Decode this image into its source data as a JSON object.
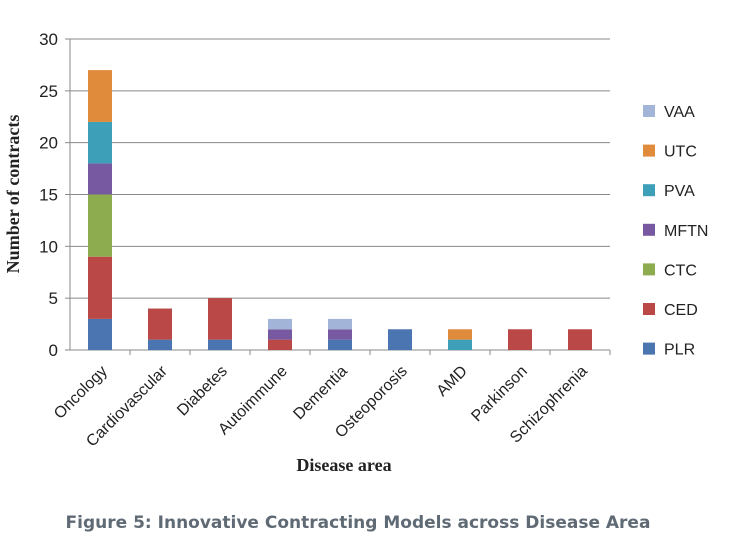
{
  "chart_data": {
    "type": "bar",
    "stacked": true,
    "caption": "Figure 5: Innovative Contracting Models across Disease Area",
    "xlabel": "Disease area",
    "ylabel": "Number of contracts",
    "ylim": [
      0,
      30
    ],
    "yticks": [
      0,
      5,
      10,
      15,
      20,
      25,
      30
    ],
    "grid": true,
    "legend_position": "right",
    "categories": [
      "Oncology",
      "Cardiovascular",
      "Diabetes",
      "Autoimmune",
      "Dementia",
      "Osteoporosis",
      "AMD",
      "Parkinson",
      "Schizophrenia"
    ],
    "series": [
      {
        "name": "PLR",
        "color": "#4a75b0",
        "values": [
          3,
          1,
          1,
          0,
          1,
          2,
          0,
          0,
          0
        ]
      },
      {
        "name": "CED",
        "color": "#b94846",
        "values": [
          6,
          3,
          4,
          1,
          0,
          0,
          0,
          2,
          2
        ]
      },
      {
        "name": "CTC",
        "color": "#8dab4f",
        "values": [
          6,
          0,
          0,
          0,
          0,
          0,
          0,
          0,
          0
        ]
      },
      {
        "name": "MFTN",
        "color": "#7659a0",
        "values": [
          3,
          0,
          0,
          1,
          1,
          0,
          0,
          0,
          0
        ]
      },
      {
        "name": "PVA",
        "color": "#3ea0b8",
        "values": [
          4,
          0,
          0,
          0,
          0,
          0,
          1,
          0,
          0
        ]
      },
      {
        "name": "UTC",
        "color": "#e08a3c",
        "values": [
          5,
          0,
          0,
          0,
          0,
          0,
          1,
          0,
          0
        ]
      },
      {
        "name": "VAA",
        "color": "#a2b5d9",
        "values": [
          0,
          0,
          0,
          1,
          1,
          0,
          0,
          0,
          0
        ]
      }
    ]
  }
}
